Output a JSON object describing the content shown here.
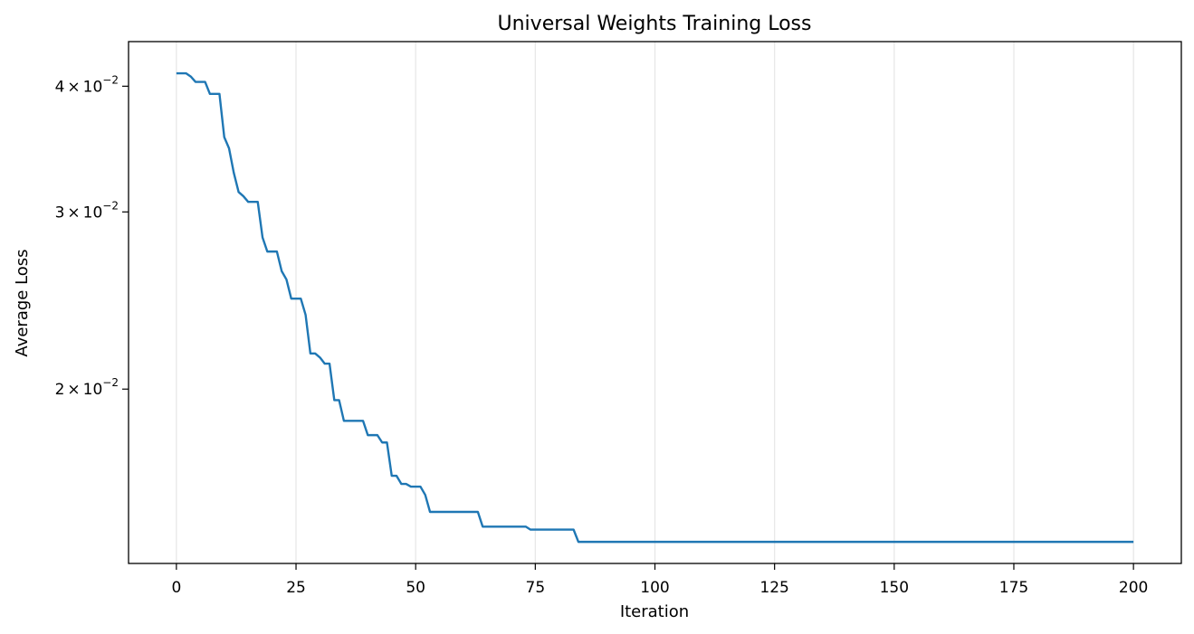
{
  "chart_data": {
    "type": "line",
    "title": "Universal Weights Training Loss",
    "xlabel": "Iteration",
    "ylabel": "Average Loss",
    "xlim": [
      -10,
      210
    ],
    "ylim": [
      0.01342,
      0.0443
    ],
    "yscale": "log",
    "grid": {
      "x": true,
      "y": false
    },
    "legend": "none",
    "line_color": "#1f77b4",
    "x_ticks": [
      {
        "value": 0,
        "label": "0"
      },
      {
        "value": 25,
        "label": "25"
      },
      {
        "value": 50,
        "label": "50"
      },
      {
        "value": 75,
        "label": "75"
      },
      {
        "value": 100,
        "label": "100"
      },
      {
        "value": 125,
        "label": "125"
      },
      {
        "value": 150,
        "label": "150"
      },
      {
        "value": 175,
        "label": "175"
      },
      {
        "value": 200,
        "label": "200"
      }
    ],
    "y_ticks": [
      {
        "value": 0.02,
        "mantissa": "2",
        "times": "×",
        "base": "10",
        "exponent": "−2"
      },
      {
        "value": 0.03,
        "mantissa": "3",
        "times": "×",
        "base": "10",
        "exponent": "−2"
      },
      {
        "value": 0.04,
        "mantissa": "4",
        "times": "×",
        "base": "10",
        "exponent": "−2"
      }
    ],
    "series": [
      {
        "x": [
          0,
          2,
          3,
          4,
          6,
          7,
          9,
          10,
          11,
          12,
          13,
          14,
          15,
          16,
          17,
          18,
          19,
          21,
          22,
          23,
          24,
          26,
          27,
          28,
          29,
          30,
          31,
          32,
          33,
          34,
          35,
          36,
          39,
          40,
          42,
          43,
          44,
          45,
          46,
          47,
          48,
          49,
          51,
          52,
          53,
          54,
          55,
          60,
          63,
          64,
          65,
          70,
          73,
          74,
          83,
          84,
          200
        ],
        "y": [
          0.0412,
          0.0412,
          0.0409,
          0.0404,
          0.0404,
          0.0393,
          0.0393,
          0.0356,
          0.0347,
          0.0328,
          0.0314,
          0.0311,
          0.0307,
          0.0307,
          0.0307,
          0.0283,
          0.0274,
          0.0274,
          0.0262,
          0.0257,
          0.0246,
          0.0246,
          0.0237,
          0.0217,
          0.0217,
          0.0215,
          0.0212,
          0.0212,
          0.0195,
          0.0195,
          0.0186,
          0.0186,
          0.0186,
          0.018,
          0.018,
          0.0177,
          0.0177,
          0.0164,
          0.0164,
          0.0161,
          0.0161,
          0.016,
          0.016,
          0.0157,
          0.0151,
          0.0151,
          0.0151,
          0.0151,
          0.0151,
          0.0146,
          0.0146,
          0.0146,
          0.0146,
          0.0145,
          0.0145,
          0.0141,
          0.0141
        ]
      }
    ]
  }
}
